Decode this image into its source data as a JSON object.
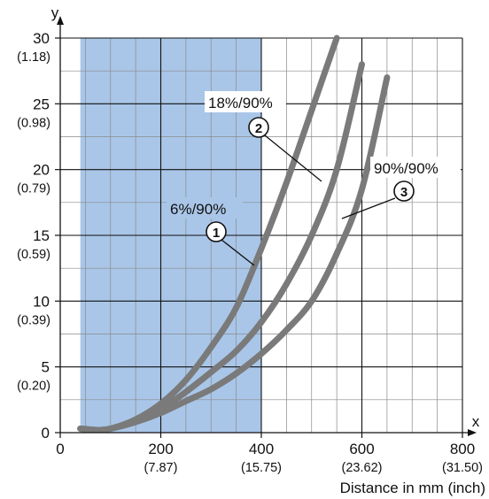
{
  "chart_data": {
    "type": "line",
    "x_axis_letter": "x",
    "y_axis_letter": "y",
    "xlabel": "Distance in mm (inch)",
    "ylabel": "",
    "xlim": [
      0,
      800
    ],
    "ylim": [
      0,
      30
    ],
    "x_ticks": [
      {
        "value": 0,
        "label": "0",
        "sub": ""
      },
      {
        "value": 200,
        "label": "200",
        "sub": "(7.87)"
      },
      {
        "value": 400,
        "label": "400",
        "sub": "(15.75)"
      },
      {
        "value": 600,
        "label": "600",
        "sub": "(23.62)"
      },
      {
        "value": 800,
        "label": "800",
        "sub": "(31.50)"
      }
    ],
    "y_ticks": [
      {
        "value": 0,
        "label": "0",
        "sub": ""
      },
      {
        "value": 5,
        "label": "5",
        "sub": "(0.20)"
      },
      {
        "value": 10,
        "label": "10",
        "sub": "(0.39)"
      },
      {
        "value": 15,
        "label": "15",
        "sub": "(0.59)"
      },
      {
        "value": 20,
        "label": "20",
        "sub": "(0.79)"
      },
      {
        "value": 25,
        "label": "25",
        "sub": "(0.98)"
      },
      {
        "value": 30,
        "label": "30",
        "sub": "(1.18)"
      }
    ],
    "minor_grid_x": 50,
    "minor_grid_y": 2.5,
    "grid": true,
    "shaded_region": {
      "x_from": 40,
      "x_to": 400,
      "color": "#a9c6e8"
    },
    "curve_color": "#7a7a7a",
    "series": [
      {
        "name": "6%/90%",
        "callout": "1",
        "points": [
          [
            40,
            0.3
          ],
          [
            75,
            0.2
          ],
          [
            100,
            0.3
          ],
          [
            150,
            1.0
          ],
          [
            200,
            2.2
          ],
          [
            250,
            4.0
          ],
          [
            300,
            6.5
          ],
          [
            350,
            9.5
          ],
          [
            400,
            14.0
          ],
          [
            450,
            19.0
          ],
          [
            500,
            24.5
          ],
          [
            550,
            30.0
          ]
        ]
      },
      {
        "name": "18%/90%",
        "callout": "2",
        "points": [
          [
            40,
            0.3
          ],
          [
            75,
            0.2
          ],
          [
            100,
            0.3
          ],
          [
            150,
            0.9
          ],
          [
            200,
            1.8
          ],
          [
            250,
            3.1
          ],
          [
            300,
            4.6
          ],
          [
            350,
            6.2
          ],
          [
            400,
            8.4
          ],
          [
            450,
            11.3
          ],
          [
            500,
            15.0
          ],
          [
            550,
            20.0
          ],
          [
            600,
            28.0
          ]
        ]
      },
      {
        "name": "90%/90%",
        "callout": "3",
        "points": [
          [
            40,
            0.3
          ],
          [
            75,
            0.2
          ],
          [
            100,
            0.3
          ],
          [
            150,
            0.8
          ],
          [
            200,
            1.5
          ],
          [
            250,
            2.4
          ],
          [
            300,
            3.3
          ],
          [
            350,
            4.5
          ],
          [
            400,
            6.0
          ],
          [
            450,
            7.8
          ],
          [
            500,
            10.0
          ],
          [
            550,
            13.6
          ],
          [
            600,
            18.5
          ],
          [
            650,
            27.0
          ]
        ]
      }
    ]
  }
}
